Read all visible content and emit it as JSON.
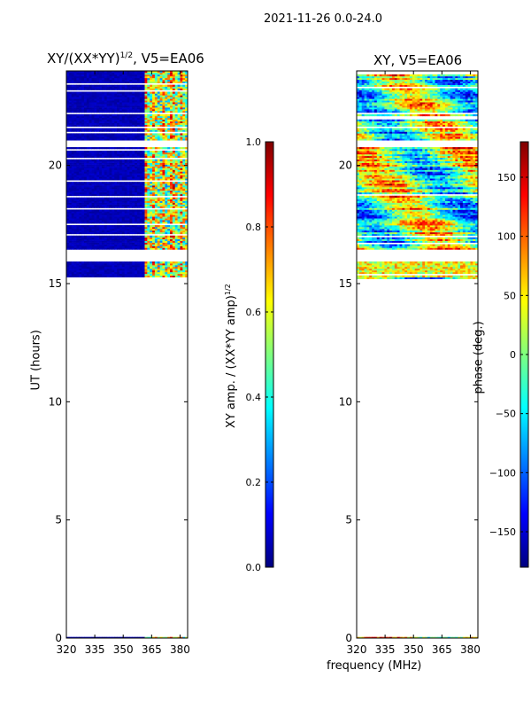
{
  "page_title": "2021-11-26 0.0-24.0",
  "chart_data": [
    {
      "type": "heatmap",
      "title": "XY/(XX*YY)^{1/2}, V5=EA06",
      "title_main": "XY/(XX*YY)",
      "title_sup": "1/2",
      "title_tail": ", V5=EA06",
      "ylabel": "UT (hours)",
      "xlabel": "",
      "xlim": [
        320,
        384
      ],
      "ylim": [
        0,
        24
      ],
      "x_ticks": [
        "320",
        "335",
        "350",
        "365",
        "380"
      ],
      "x_tick_values": [
        320,
        335,
        350,
        365,
        380
      ],
      "y_ticks": [
        "0",
        "5",
        "10",
        "15",
        "20"
      ],
      "y_tick_values": [
        0,
        5,
        10,
        15,
        20
      ],
      "colormap": "jet",
      "colorbar": {
        "label": "XY amp. / (XX*YY amp)^{1/2}",
        "label_main": "XY amp. / (XX*YY amp)",
        "label_sup": "1/2",
        "range": [
          0.0,
          1.0
        ],
        "ticks": [
          "0.0",
          "0.2",
          "0.4",
          "0.6",
          "0.8",
          "1.0"
        ],
        "tick_values": [
          0.0,
          0.2,
          0.4,
          0.6,
          0.8,
          1.0
        ]
      },
      "data_time_ranges_hours": [
        [
          0.0,
          0.05
        ],
        [
          15.2,
          24.0
        ]
      ],
      "typical_values": {
        "320-361 MHz": 0.05,
        "361-384 MHz": 0.5
      }
    },
    {
      "type": "heatmap",
      "title": "XY, V5=EA06",
      "ylabel": "",
      "xlabel": "frequency (MHz)",
      "xlim": [
        320,
        384
      ],
      "ylim": [
        0,
        24
      ],
      "x_ticks": [
        "320",
        "335",
        "350",
        "365",
        "380"
      ],
      "x_tick_values": [
        320,
        335,
        350,
        365,
        380
      ],
      "y_ticks": [
        "0",
        "5",
        "10",
        "15",
        "20"
      ],
      "y_tick_values": [
        0,
        5,
        10,
        15,
        20
      ],
      "colormap": "jet",
      "colorbar": {
        "label": "phase (deg.)",
        "range": [
          -180,
          180
        ],
        "ticks": [
          "−150",
          "−100",
          "−50",
          "0",
          "50",
          "100",
          "150"
        ],
        "tick_values": [
          -150,
          -100,
          -50,
          0,
          50,
          100,
          150
        ]
      },
      "data_time_ranges_hours": [
        [
          0.0,
          0.05
        ],
        [
          15.2,
          24.0
        ]
      ]
    }
  ],
  "colors": {
    "jet_stops": [
      "#00007f",
      "#0000ff",
      "#007fff",
      "#00ffff",
      "#7fff7f",
      "#ffff00",
      "#ff7f00",
      "#ff0000",
      "#7f0000"
    ]
  }
}
